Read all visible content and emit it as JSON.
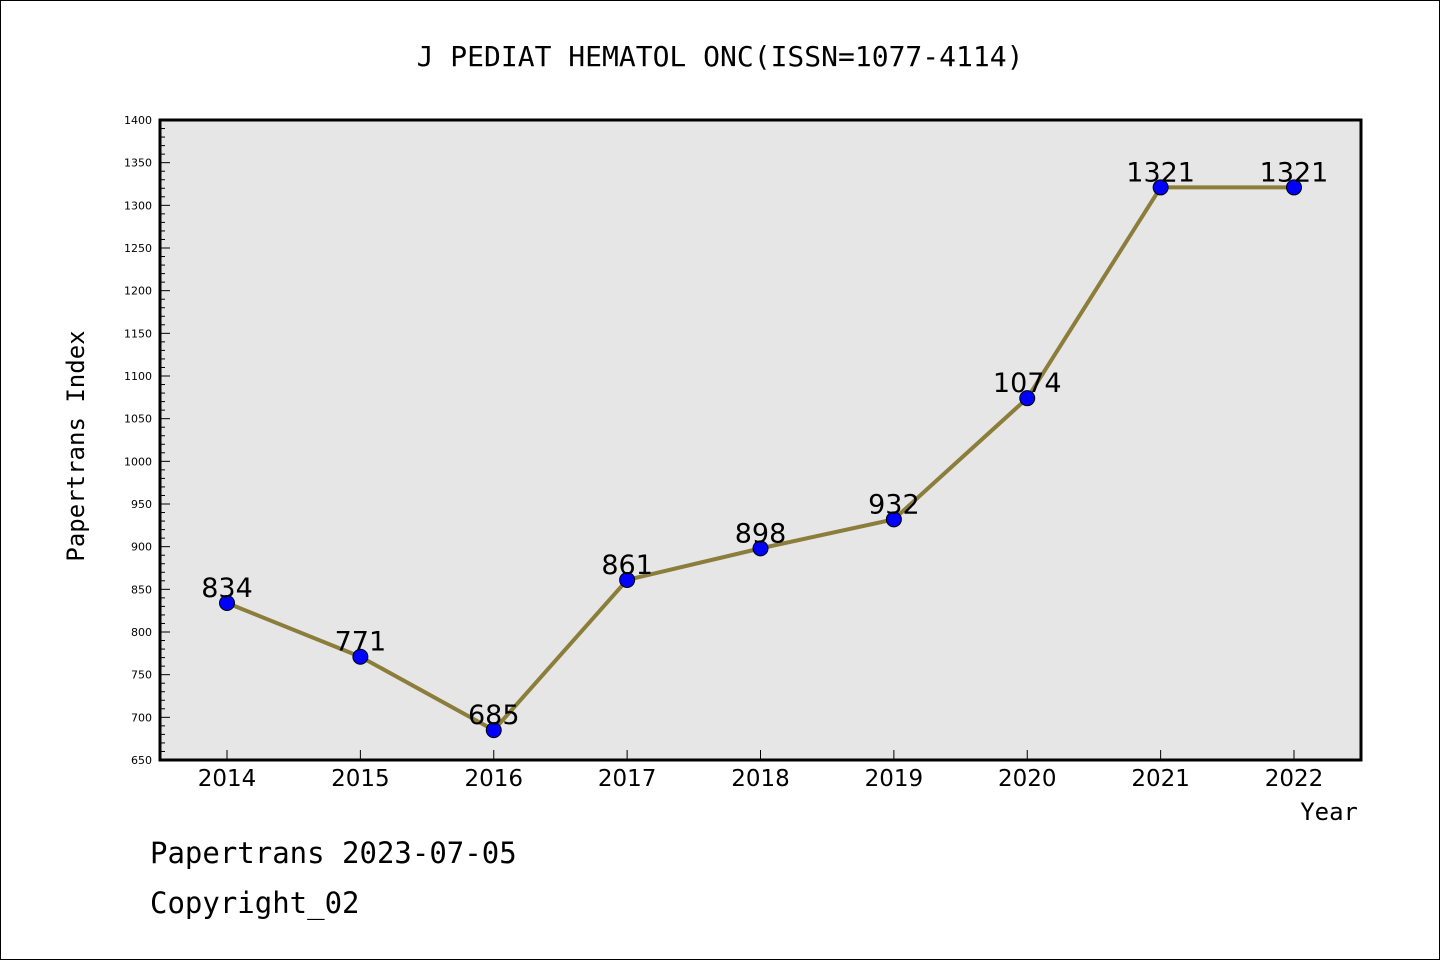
{
  "chart_data": {
    "type": "line",
    "title": "J PEDIAT HEMATOL ONC(ISSN=1077-4114)",
    "xlabel": "Year",
    "ylabel": "Papertrans Index",
    "categories": [
      "2014",
      "2015",
      "2016",
      "2017",
      "2018",
      "2019",
      "2020",
      "2021",
      "2022"
    ],
    "series": [
      {
        "values": [
          834,
          771,
          685,
          861,
          898,
          932,
          1074,
          1321,
          1321
        ]
      }
    ],
    "ylim": [
      650,
      1400
    ],
    "yticks": [
      650,
      700,
      750,
      800,
      850,
      900,
      950,
      1000,
      1050,
      1100,
      1150,
      1200,
      1250,
      1300,
      1350,
      1400
    ],
    "grid": false,
    "legend": "none",
    "colors": {
      "line": "#8b7d3a",
      "marker": "#0000ff",
      "plot_background": "#e6e6e6"
    }
  },
  "footer": {
    "date_line": "Papertrans 2023-07-05",
    "copyright": "Copyright_02"
  }
}
